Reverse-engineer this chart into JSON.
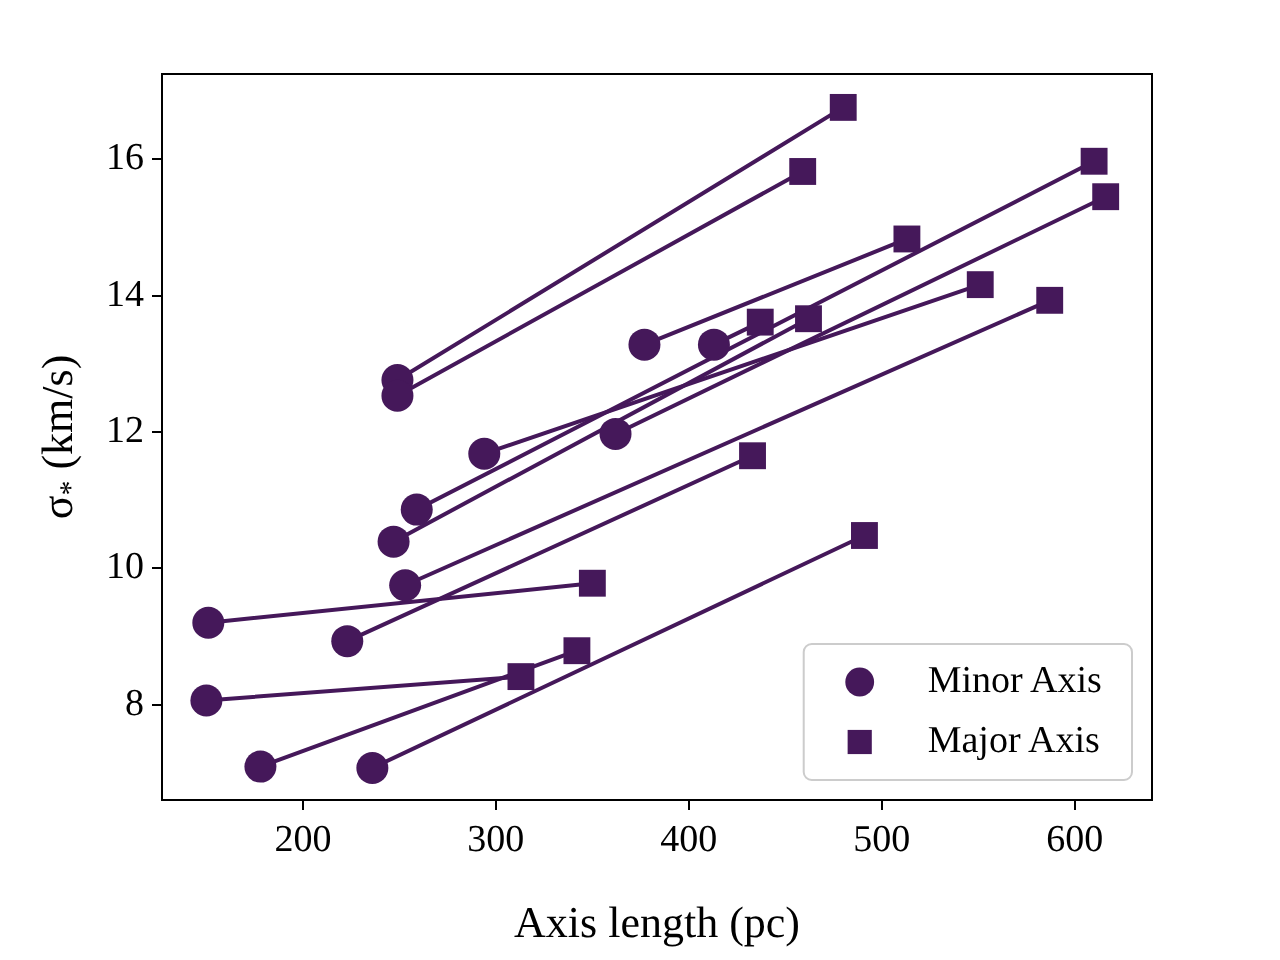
{
  "chart_data": {
    "type": "scatter",
    "xlabel": "Axis length (pc)",
    "ylabel": "σ$_{*}$ (km/s)",
    "xlim": [
      127,
      640
    ],
    "ylim": [
      6.6,
      17.25
    ],
    "xticks": [
      200,
      300,
      400,
      500,
      600
    ],
    "yticks": [
      8,
      10,
      12,
      14,
      16
    ],
    "legend": "bottom right",
    "series": [
      {
        "name": "Minor Axis",
        "color": "#45185a",
        "marker": "circle",
        "x": [
          249,
          249,
          377,
          413,
          294,
          259,
          247,
          253,
          151,
          223,
          150,
          178,
          236,
          362
        ],
        "values": [
          12.76,
          12.53,
          13.28,
          13.28,
          11.68,
          10.86,
          10.39,
          9.75,
          9.2,
          8.93,
          8.06,
          7.09,
          7.07,
          11.97
        ]
      },
      {
        "name": "Major Axis",
        "color": "#45185a",
        "marker": "square",
        "x": [
          480,
          459,
          513,
          437,
          551,
          610,
          462,
          587,
          350,
          433,
          313,
          342,
          491,
          616
        ],
        "values": [
          16.76,
          15.82,
          14.83,
          13.61,
          14.16,
          15.97,
          13.66,
          13.93,
          9.78,
          11.65,
          8.41,
          8.79,
          10.48,
          15.45
        ]
      },
      {
        "type": "line",
        "color": "#45185a",
        "x": [
          249,
          480
        ],
        "values": [
          12.76,
          16.76
        ]
      },
      {
        "type": "line",
        "color": "#45185a",
        "x": [
          249,
          459
        ],
        "values": [
          12.53,
          15.82
        ]
      },
      {
        "type": "line",
        "color": "#45185a",
        "x": [
          377,
          513
        ],
        "values": [
          13.28,
          14.83
        ]
      },
      {
        "type": "line",
        "color": "#45185a",
        "x": [
          413,
          437
        ],
        "values": [
          13.28,
          13.61
        ]
      },
      {
        "type": "line",
        "color": "#45185a",
        "x": [
          294,
          551
        ],
        "values": [
          11.68,
          14.16
        ]
      },
      {
        "type": "line",
        "color": "#45185a",
        "x": [
          259,
          610
        ],
        "values": [
          10.86,
          15.97
        ]
      },
      {
        "type": "line",
        "color": "#45185a",
        "x": [
          247,
          462
        ],
        "values": [
          10.39,
          13.66
        ]
      },
      {
        "type": "line",
        "color": "#45185a",
        "x": [
          253,
          587
        ],
        "values": [
          9.75,
          13.93
        ]
      },
      {
        "type": "line",
        "color": "#45185a",
        "x": [
          151,
          350
        ],
        "values": [
          9.2,
          9.78
        ]
      },
      {
        "type": "line",
        "color": "#45185a",
        "x": [
          223,
          433
        ],
        "values": [
          8.93,
          11.65
        ]
      },
      {
        "type": "line",
        "color": "#45185a",
        "x": [
          150,
          313
        ],
        "values": [
          8.06,
          8.41
        ]
      },
      {
        "type": "line",
        "color": "#45185a",
        "x": [
          178,
          342
        ],
        "values": [
          7.09,
          8.79
        ]
      },
      {
        "type": "line",
        "color": "#45185a",
        "x": [
          236,
          491
        ],
        "values": [
          7.07,
          10.48
        ]
      },
      {
        "type": "line",
        "color": "#45185a",
        "x": [
          362,
          616
        ],
        "values": [
          11.97,
          15.45
        ]
      }
    ]
  }
}
